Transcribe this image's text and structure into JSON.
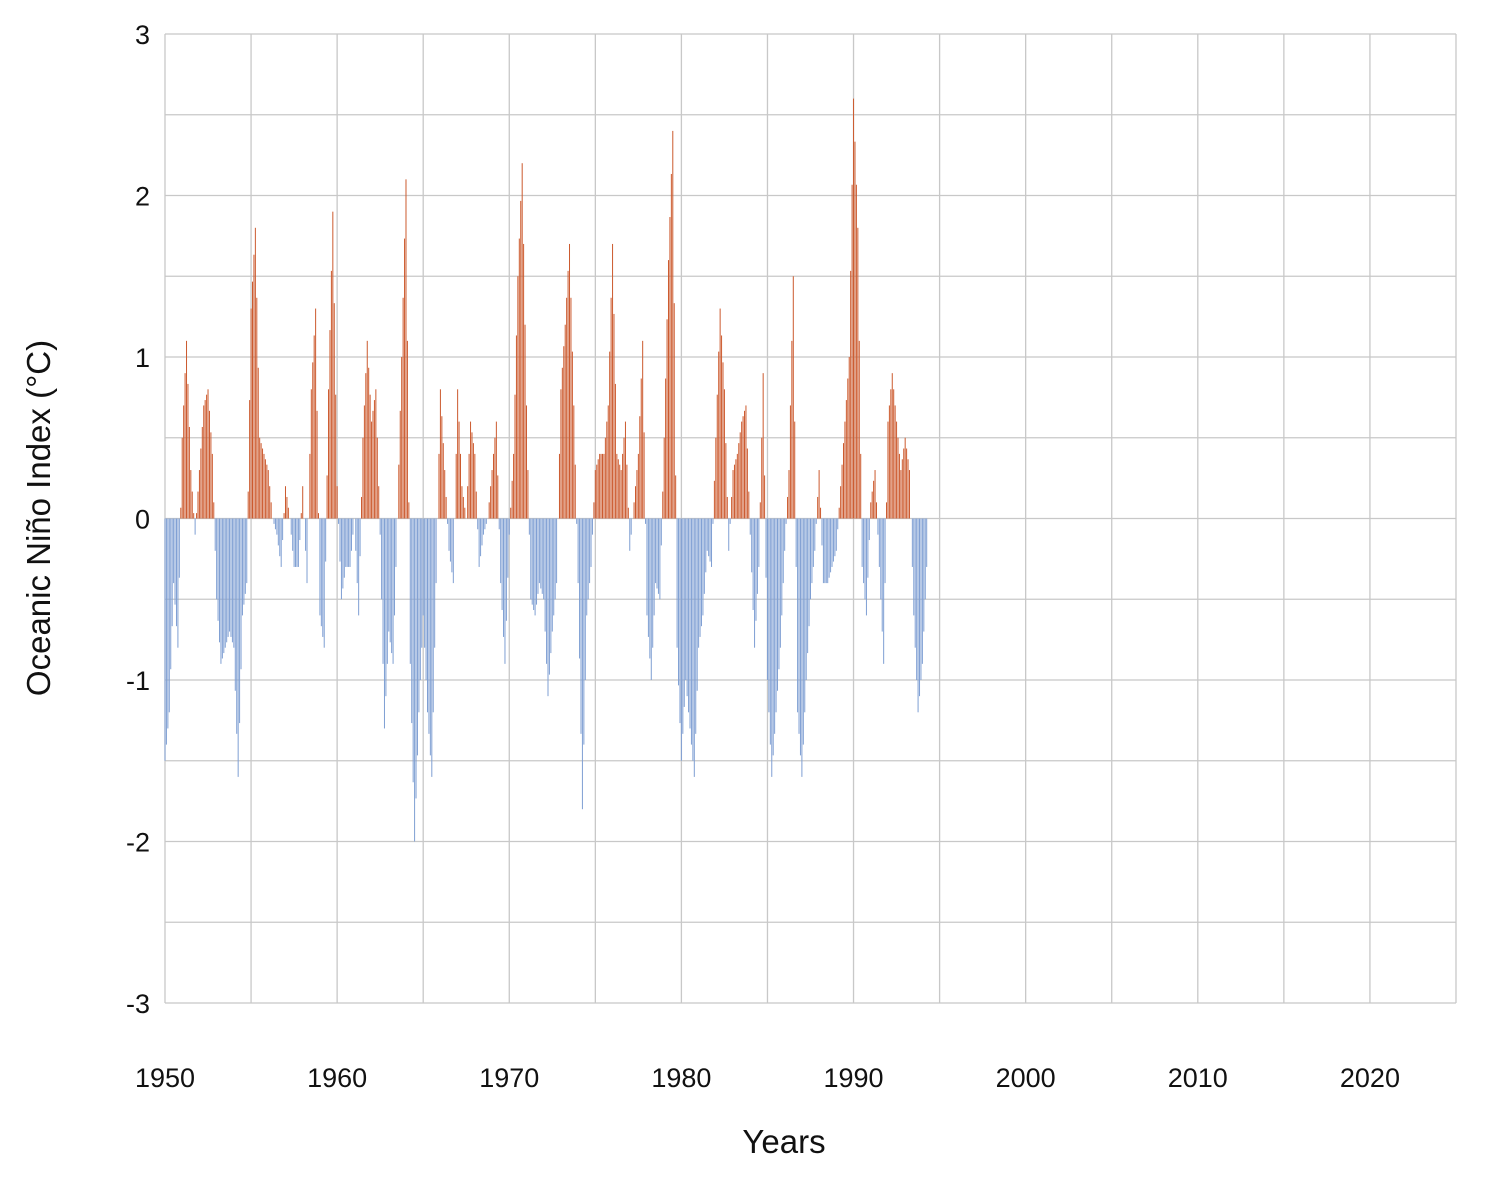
{
  "chart_data": {
    "type": "bar",
    "title": "",
    "xlabel": "Years",
    "ylabel": "Oceanic Niño Index (°C)",
    "xlim": [
      1950,
      2025
    ],
    "ylim": [
      -3,
      3
    ],
    "x_ticks": [
      "1950",
      "1960",
      "1970",
      "1980",
      "1990",
      "2000",
      "2010",
      "2020"
    ],
    "y_ticks": [
      "3",
      "2",
      "1",
      "0",
      "-1",
      "-2",
      "-3"
    ],
    "grid": true,
    "legend": "none",
    "colors": {
      "positive": "#cc5a2e",
      "negative": "#7f9fd3",
      "grid": "#c8c8c8"
    },
    "series": [
      {
        "x_start": 1950,
        "x_step": 0.25,
        "values": [
          -1.5,
          -1.2,
          -0.4,
          -0.8,
          0.5,
          1.1,
          0.3,
          -0.1,
          0.3,
          0.7,
          0.8,
          0.4,
          -0.5,
          -0.9,
          -0.8,
          -0.7,
          -0.8,
          -1.6,
          -0.6,
          -0.4,
          1.3,
          1.8,
          0.5,
          0.4,
          0.3,
          0.0,
          -0.1,
          -0.3,
          0.2,
          0.0,
          -0.3,
          -0.3,
          0.2,
          -0.4,
          0.8,
          1.3,
          -0.6,
          -0.8,
          0.8,
          1.9,
          0.2,
          -0.5,
          -0.3,
          -0.3,
          0.0,
          -0.6,
          0.5,
          1.1,
          0.6,
          0.8,
          -0.1,
          -1.3,
          -0.7,
          -0.9,
          0.0,
          1.0,
          2.1,
          -0.9,
          -2.0,
          -1.2,
          -0.6,
          -1.2,
          -1.6,
          -0.4,
          0.8,
          0.3,
          -0.2,
          -0.4,
          0.8,
          0.2,
          0.0,
          0.6,
          0.4,
          -0.3,
          -0.1,
          0.0,
          0.3,
          0.6,
          -0.4,
          -0.9,
          -0.1,
          0.4,
          1.5,
          2.2,
          0.7,
          -0.5,
          -0.6,
          -0.4,
          -0.5,
          -1.1,
          -0.7,
          -0.4,
          0.8,
          1.2,
          1.7,
          0.7,
          -0.4,
          -1.8,
          -0.6,
          -0.3,
          0.3,
          0.4,
          0.4,
          0.7,
          1.7,
          0.4,
          0.3,
          0.6,
          -0.2,
          0.1,
          0.4,
          1.1,
          -0.6,
          -1.0,
          -0.4,
          -0.5,
          0.5,
          1.6,
          2.4,
          -0.8,
          -1.5,
          -1.0,
          -1.3,
          -1.6,
          -0.8,
          -0.6,
          -0.2,
          -0.3,
          0.5,
          1.3,
          0.8,
          -0.2,
          0.3,
          0.4,
          0.6,
          0.7,
          -0.1,
          -0.8,
          -0.3,
          0.9,
          -1.0,
          -1.6,
          -1.2,
          -0.8,
          -0.2,
          0.3,
          1.5,
          -1.2,
          -1.6,
          -1.0,
          -0.5,
          -0.2,
          0.3,
          -0.4,
          -0.4,
          -0.3,
          -0.2,
          0.2,
          0.6,
          1.0,
          2.6,
          1.8,
          -0.3,
          -0.6,
          0.1,
          0.3,
          -0.3,
          -0.9,
          0.6,
          0.9,
          0.6,
          0.3,
          0.5,
          0.3,
          -0.6,
          -1.2,
          -0.9,
          -0.3
        ]
      }
    ]
  }
}
